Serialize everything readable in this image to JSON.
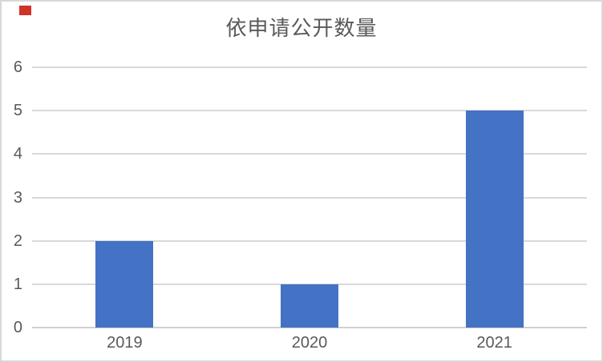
{
  "marker": {
    "name": "red-square",
    "color": "#cf3227"
  },
  "chart_data": {
    "type": "bar",
    "title": "依申请公开数量",
    "categories": [
      "2019",
      "2020",
      "2021"
    ],
    "values": [
      2,
      1,
      5
    ],
    "xlabel": "",
    "ylabel": "",
    "ylim": [
      0,
      6
    ],
    "yticks": [
      0,
      1,
      2,
      3,
      4,
      5,
      6
    ],
    "grid": true,
    "legend": false,
    "bar_color": "#4472c4",
    "gridline_color": "#d9d9d9",
    "axis_line_color": "#d0d0d0",
    "text_color": "#595959",
    "title_color": "#595959",
    "frame_border_color": "#d8d8d8",
    "background_color": "#ffffff"
  }
}
